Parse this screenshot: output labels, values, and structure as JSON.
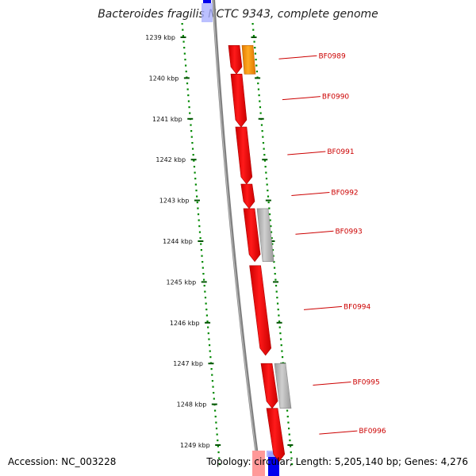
{
  "title": "Bacteroides fragilis NCTC 9343, complete genome",
  "footer": {
    "accession": "Accession: NC_003228",
    "topology": "Topology: circular; Length: 5,205,140 bp; Genes: 4,276"
  },
  "ruler": {
    "ticks": [
      {
        "label": "1239 kbp",
        "kbp": 1239
      },
      {
        "label": "1240 kbp",
        "kbp": 1240
      },
      {
        "label": "1241 kbp",
        "kbp": 1241
      },
      {
        "label": "1242 kbp",
        "kbp": 1242
      },
      {
        "label": "1243 kbp",
        "kbp": 1243
      },
      {
        "label": "1244 kbp",
        "kbp": 1244
      },
      {
        "label": "1245 kbp",
        "kbp": 1245
      },
      {
        "label": "1246 kbp",
        "kbp": 1246
      },
      {
        "label": "1247 kbp",
        "kbp": 1247
      },
      {
        "label": "1248 kbp",
        "kbp": 1248
      },
      {
        "label": "1249 kbp",
        "kbp": 1249
      }
    ]
  },
  "genes": [
    {
      "name": "BF0989",
      "start_kbp": 1239.2,
      "end_kbp": 1239.9,
      "strand": "reverse"
    },
    {
      "name": "BF0990",
      "start_kbp": 1239.9,
      "end_kbp": 1241.2,
      "strand": "reverse"
    },
    {
      "name": "BF0991",
      "start_kbp": 1241.2,
      "end_kbp": 1242.6,
      "strand": "reverse"
    },
    {
      "name": "BF0992",
      "start_kbp": 1242.6,
      "end_kbp": 1243.2,
      "strand": "reverse"
    },
    {
      "name": "BF0993",
      "start_kbp": 1243.2,
      "end_kbp": 1244.5,
      "strand": "reverse"
    },
    {
      "name": "BF0994",
      "start_kbp": 1244.6,
      "end_kbp": 1246.8,
      "strand": "reverse"
    },
    {
      "name": "BF0995",
      "start_kbp": 1247.0,
      "end_kbp": 1248.1,
      "strand": "reverse"
    },
    {
      "name": "BF0996",
      "start_kbp": 1248.1,
      "end_kbp": 1249.4,
      "strand": "reverse"
    }
  ],
  "cds": [
    {
      "start_kbp": 1239.2,
      "end_kbp": 1239.9,
      "kind": "orange"
    },
    {
      "start_kbp": 1243.2,
      "end_kbp": 1244.5,
      "kind": "grey"
    },
    {
      "start_kbp": 1247.0,
      "end_kbp": 1248.1,
      "kind": "grey"
    }
  ],
  "colors": {
    "gene": "#ee0000",
    "gene_dark": "#aa0000",
    "orange": "#ff9900",
    "grey": "#b0b0b0",
    "backbone": "#808080",
    "ruler_dots": "#008800",
    "tick": "#005500",
    "label_line": "#cc0000",
    "blue_top": "#0000ee",
    "blue_light": "#aab0ff",
    "pink": "#ff9999"
  }
}
